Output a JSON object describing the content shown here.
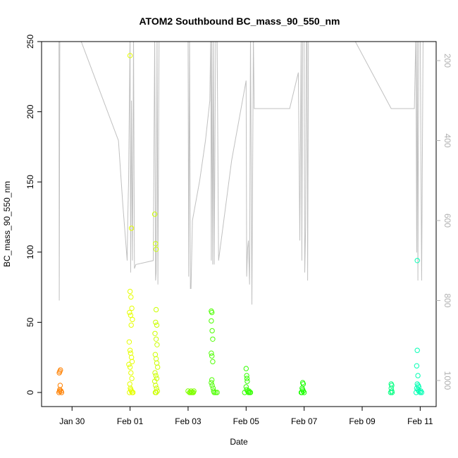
{
  "chart_data": {
    "type": "scatter",
    "title": "ATOM2 Southbound BC_mass_90_550_nm",
    "xlabel": "Date",
    "ylabel": "BC_mass_90_550_nm",
    "ylim": [
      0,
      250
    ],
    "yticks": [
      0,
      50,
      100,
      150,
      200,
      250
    ],
    "x_ticks": [
      {
        "day": 30,
        "label": "Jan 30"
      },
      {
        "day": 32,
        "label": "Feb 01"
      },
      {
        "day": 34,
        "label": "Feb 03"
      },
      {
        "day": 36,
        "label": "Feb 05"
      },
      {
        "day": 38,
        "label": "Feb 07"
      },
      {
        "day": 40,
        "label": "Feb 09"
      },
      {
        "day": 42,
        "label": "Feb 11"
      }
    ],
    "xlim_days": [
      28.95,
      42.55
    ],
    "right_axis": {
      "color": "#b0b0b0",
      "ticks": [
        200,
        400,
        600,
        800,
        1000
      ],
      "ylim": [
        1050,
        130
      ]
    },
    "altitude_trace": {
      "color": "#c0c0c0",
      "points": [
        [
          29.55,
          130
        ],
        [
          29.56,
          800
        ],
        [
          29.58,
          130
        ],
        [
          29.6,
          130
        ],
        [
          30.2,
          130
        ],
        [
          31.6,
          400
        ],
        [
          31.75,
          560
        ],
        [
          31.9,
          700
        ],
        [
          31.92,
          600
        ],
        [
          31.95,
          500
        ],
        [
          32.0,
          130
        ],
        [
          32.02,
          730
        ],
        [
          32.05,
          300
        ],
        [
          32.08,
          700
        ],
        [
          32.1,
          470
        ],
        [
          32.12,
          130
        ],
        [
          32.15,
          720
        ],
        [
          32.2,
          710
        ],
        [
          32.5,
          705
        ],
        [
          32.8,
          700
        ],
        [
          32.85,
          130
        ],
        [
          32.88,
          750
        ],
        [
          32.9,
          730
        ],
        [
          32.93,
          130
        ],
        [
          32.96,
          760
        ],
        [
          33.0,
          130
        ],
        [
          34.0,
          130
        ],
        [
          34.02,
          740
        ],
        [
          34.05,
          130
        ],
        [
          34.08,
          770
        ],
        [
          34.1,
          770
        ],
        [
          34.15,
          600
        ],
        [
          34.4,
          500
        ],
        [
          34.6,
          400
        ],
        [
          34.75,
          300
        ],
        [
          34.78,
          130
        ],
        [
          34.8,
          700
        ],
        [
          34.82,
          130
        ],
        [
          34.85,
          710
        ],
        [
          34.88,
          130
        ],
        [
          34.9,
          710
        ],
        [
          34.95,
          130
        ],
        [
          35.0,
          130
        ],
        [
          35.05,
          700
        ],
        [
          35.5,
          450
        ],
        [
          36.0,
          250
        ],
        [
          36.02,
          740
        ],
        [
          36.05,
          670
        ],
        [
          36.08,
          650
        ],
        [
          36.12,
          760
        ],
        [
          36.15,
          130
        ],
        [
          36.2,
          810
        ],
        [
          36.25,
          140
        ],
        [
          36.28,
          320
        ],
        [
          36.35,
          320
        ],
        [
          37.5,
          320
        ],
        [
          37.8,
          230
        ],
        [
          37.85,
          650
        ],
        [
          37.9,
          130
        ],
        [
          37.92,
          700
        ],
        [
          37.95,
          130
        ],
        [
          38.0,
          130
        ],
        [
          38.02,
          730
        ],
        [
          38.05,
          620
        ],
        [
          38.08,
          130
        ],
        [
          38.1,
          130
        ],
        [
          38.12,
          750
        ],
        [
          38.15,
          130
        ],
        [
          38.18,
          130
        ],
        [
          39.6,
          130
        ],
        [
          41.0,
          320
        ],
        [
          41.8,
          320
        ],
        [
          41.85,
          130
        ],
        [
          41.88,
          680
        ],
        [
          41.9,
          130
        ],
        [
          41.92,
          750
        ],
        [
          41.95,
          130
        ],
        [
          42.0,
          130
        ],
        [
          42.05,
          750
        ],
        [
          42.1,
          130
        ]
      ]
    },
    "series": [
      {
        "color": "#ff8000",
        "points": [
          [
            29.55,
            0
          ],
          [
            29.57,
            1
          ],
          [
            29.58,
            2
          ],
          [
            29.59,
            5
          ],
          [
            29.56,
            14
          ],
          [
            29.58,
            15
          ],
          [
            29.6,
            16
          ],
          [
            29.62,
            1
          ],
          [
            29.64,
            0
          ]
        ]
      },
      {
        "color": "#e6ff00",
        "points": [
          [
            32.0,
            240
          ],
          [
            32.05,
            117
          ],
          [
            32.0,
            72
          ],
          [
            32.03,
            68
          ],
          [
            32.06,
            60
          ],
          [
            31.98,
            57
          ],
          [
            32.02,
            55
          ],
          [
            32.08,
            52
          ],
          [
            32.04,
            48
          ],
          [
            31.97,
            36
          ],
          [
            32.0,
            30
          ],
          [
            32.02,
            28
          ],
          [
            32.05,
            25
          ],
          [
            32.07,
            22
          ],
          [
            31.96,
            20
          ],
          [
            32.0,
            18
          ],
          [
            32.03,
            14
          ],
          [
            32.06,
            10
          ],
          [
            31.99,
            6
          ],
          [
            32.01,
            3
          ],
          [
            32.03,
            2
          ],
          [
            32.05,
            1
          ],
          [
            32.07,
            0
          ],
          [
            31.98,
            0
          ],
          [
            32.1,
            0
          ]
        ]
      },
      {
        "color": "#ccff00",
        "points": [
          [
            32.85,
            127
          ],
          [
            32.88,
            106
          ],
          [
            32.9,
            102
          ],
          [
            32.9,
            59
          ],
          [
            32.88,
            50
          ],
          [
            32.92,
            48
          ],
          [
            32.86,
            42
          ],
          [
            32.9,
            38
          ],
          [
            32.93,
            34
          ],
          [
            32.87,
            27
          ],
          [
            32.9,
            24
          ],
          [
            32.92,
            21
          ],
          [
            32.95,
            18
          ],
          [
            32.86,
            14
          ],
          [
            32.89,
            12
          ],
          [
            32.92,
            10
          ],
          [
            32.85,
            8
          ],
          [
            32.88,
            5
          ],
          [
            32.91,
            3
          ],
          [
            32.94,
            1
          ],
          [
            32.87,
            0
          ],
          [
            32.9,
            0
          ]
        ]
      },
      {
        "color": "#80ff00",
        "points": [
          [
            34.0,
            1
          ],
          [
            34.05,
            0
          ],
          [
            34.08,
            0
          ],
          [
            34.1,
            1
          ],
          [
            34.12,
            0
          ],
          [
            34.15,
            0
          ],
          [
            34.18,
            0
          ],
          [
            34.2,
            1
          ]
        ]
      },
      {
        "color": "#4dff00",
        "points": [
          [
            34.8,
            58
          ],
          [
            34.82,
            57
          ],
          [
            34.8,
            51
          ],
          [
            34.83,
            44
          ],
          [
            34.85,
            38
          ],
          [
            34.8,
            28
          ],
          [
            34.82,
            26
          ],
          [
            34.85,
            22
          ],
          [
            34.82,
            9
          ],
          [
            34.8,
            7
          ],
          [
            34.83,
            5
          ],
          [
            34.86,
            3
          ],
          [
            34.88,
            1
          ],
          [
            34.9,
            0
          ],
          [
            34.95,
            0
          ],
          [
            35.0,
            0
          ]
        ]
      },
      {
        "color": "#33ff00",
        "points": [
          [
            36.0,
            17
          ],
          [
            36.02,
            12
          ],
          [
            36.03,
            10
          ],
          [
            36.04,
            8
          ],
          [
            36.0,
            4
          ],
          [
            36.02,
            2
          ],
          [
            36.05,
            1
          ],
          [
            36.08,
            0
          ],
          [
            36.12,
            0
          ],
          [
            36.15,
            0
          ],
          [
            35.95,
            0
          ],
          [
            36.1,
            1
          ]
        ]
      },
      {
        "color": "#1aff00",
        "points": [
          [
            37.95,
            7
          ],
          [
            37.97,
            6
          ],
          [
            37.93,
            3
          ],
          [
            37.95,
            2
          ],
          [
            37.97,
            1
          ],
          [
            38.0,
            0
          ],
          [
            37.9,
            0
          ],
          [
            37.92,
            0
          ]
        ]
      },
      {
        "color": "#00ff80",
        "points": [
          [
            41.0,
            6
          ],
          [
            41.02,
            5
          ],
          [
            41.0,
            3
          ],
          [
            41.02,
            1
          ],
          [
            41.03,
            0
          ],
          [
            40.98,
            0
          ]
        ]
      },
      {
        "color": "#00ffb3",
        "points": [
          [
            41.9,
            94
          ],
          [
            41.9,
            30
          ],
          [
            41.88,
            19
          ],
          [
            41.92,
            12
          ],
          [
            41.9,
            6
          ],
          [
            41.93,
            5
          ],
          [
            41.95,
            4
          ],
          [
            41.88,
            3
          ],
          [
            41.92,
            2
          ],
          [
            41.95,
            1
          ],
          [
            42.0,
            0
          ],
          [
            42.05,
            0
          ],
          [
            41.86,
            0
          ],
          [
            42.02,
            1
          ]
        ]
      }
    ]
  }
}
